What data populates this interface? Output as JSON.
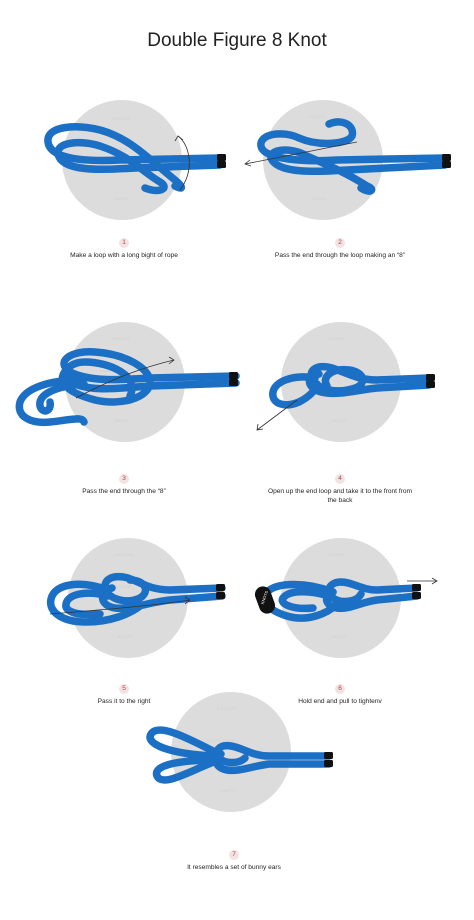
{
  "title": "Double Figure 8 Knot",
  "colors": {
    "rope": "#1b6fc4",
    "disc": "#dcdcdc",
    "number": "#b5423e"
  },
  "steps": [
    {
      "number": "1",
      "caption": "Make a loop with a long bight of rope"
    },
    {
      "number": "2",
      "caption": "Pass the end through the loop making an “8”"
    },
    {
      "number": "3",
      "caption": "Pass the end through the “8”"
    },
    {
      "number": "4",
      "caption": "Open up the end loop and take it to the front from the back"
    },
    {
      "number": "5",
      "caption": "Pass it to the right"
    },
    {
      "number": "6",
      "caption": "Hold end and pull to tightenv"
    },
    {
      "number": "7",
      "caption": "It resembles a set of bunny ears"
    }
  ]
}
